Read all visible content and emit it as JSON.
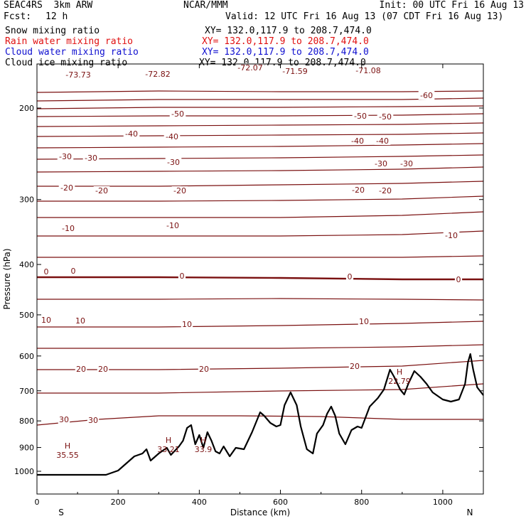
{
  "header": {
    "model": "SEAC4RS  3km ARW",
    "center": "NCAR/MMM",
    "init": "Init: 00 UTC Fri 16 Aug 13",
    "fcst_label": "Fcst:",
    "fcst_value": "12 h",
    "valid": "Valid: 12 UTC Fri 16 Aug 13 (07 CDT Fri 16 Aug 13)"
  },
  "fields": [
    {
      "name": "Snow mixing ratio",
      "xy": "XY= 132.0,117.9 to 208.7,474.0",
      "color": "#000000"
    },
    {
      "name": "Rain water mixing ratio",
      "xy": "XY= 132.0,117.9 to 208.7,474.0",
      "color": "#e01010"
    },
    {
      "name": "Cloud water mixing ratio",
      "xy": "XY= 132.0,117.9 to 208.7,474.0",
      "color": "#1010d0"
    },
    {
      "name": "Cloud ice mixing ratio",
      "xy": "XY= 132.0,117.9 to 208.7,474.0",
      "color": "#000000"
    }
  ],
  "chart_data": {
    "type": "line",
    "xlabel": "Distance (km)",
    "ylabel": "Pressure (hPa)",
    "xlim": [
      0,
      1100
    ],
    "ylim": [
      1050,
      100
    ],
    "x_ticks": [
      0,
      200,
      400,
      600,
      800,
      1000
    ],
    "y_ticks": [
      200,
      300,
      400,
      500,
      600,
      700,
      800,
      900,
      1000
    ],
    "y_scale": "log",
    "left_end_label": "S",
    "right_end_label": "N",
    "contour_color": "#7a1010",
    "terrain_color": "#000000",
    "temperature_contours": [
      {
        "level": -70,
        "p": [
          [
            0,
            130
          ],
          [
            300,
            128
          ],
          [
            600,
            129
          ],
          [
            900,
            129
          ],
          [
            1100,
            128
          ]
        ]
      },
      {
        "level": -65,
        "p": [
          [
            0,
            142
          ],
          [
            300,
            140
          ],
          [
            600,
            140
          ],
          [
            900,
            140
          ],
          [
            1100,
            138
          ]
        ]
      },
      {
        "level": -60,
        "p": [
          [
            0,
            153
          ],
          [
            300,
            151
          ],
          [
            600,
            151
          ],
          [
            900,
            150
          ],
          [
            1100,
            149
          ]
        ]
      },
      {
        "level": -55,
        "p": [
          [
            0,
            164
          ],
          [
            300,
            163
          ],
          [
            600,
            163
          ],
          [
            900,
            162
          ],
          [
            1100,
            160
          ]
        ]
      },
      {
        "level": -50,
        "p": [
          [
            0,
            178
          ],
          [
            300,
            177
          ],
          [
            600,
            176
          ],
          [
            900,
            175
          ],
          [
            1100,
            173
          ]
        ]
      },
      {
        "level": -45,
        "p": [
          [
            0,
            192
          ],
          [
            300,
            191
          ],
          [
            600,
            190
          ],
          [
            900,
            189
          ],
          [
            1100,
            187
          ]
        ]
      },
      {
        "level": -40,
        "p": [
          [
            0,
            208
          ],
          [
            300,
            207
          ],
          [
            600,
            206
          ],
          [
            900,
            204
          ],
          [
            1100,
            202
          ]
        ]
      },
      {
        "level": -35,
        "p": [
          [
            0,
            224
          ],
          [
            300,
            223
          ],
          [
            600,
            222
          ],
          [
            900,
            220
          ],
          [
            1100,
            218
          ]
        ]
      },
      {
        "level": -30,
        "p": [
          [
            0,
            242
          ],
          [
            300,
            241
          ],
          [
            600,
            240
          ],
          [
            900,
            238
          ],
          [
            1100,
            235
          ]
        ]
      },
      {
        "level": -25,
        "p": [
          [
            0,
            262
          ],
          [
            300,
            262
          ],
          [
            600,
            260
          ],
          [
            900,
            258
          ],
          [
            1100,
            255
          ]
        ]
      },
      {
        "level": -20,
        "p": [
          [
            0,
            283
          ],
          [
            300,
            283
          ],
          [
            600,
            282
          ],
          [
            900,
            280
          ],
          [
            1100,
            276
          ]
        ]
      },
      {
        "level": -15,
        "p": [
          [
            0,
            306
          ],
          [
            300,
            306
          ],
          [
            600,
            306
          ],
          [
            900,
            303
          ],
          [
            1100,
            298
          ]
        ]
      },
      {
        "level": -10,
        "p": [
          [
            0,
            332
          ],
          [
            300,
            332
          ],
          [
            600,
            332
          ],
          [
            900,
            330
          ],
          [
            1100,
            325
          ]
        ]
      },
      {
        "level": -5,
        "p": [
          [
            0,
            362
          ],
          [
            300,
            362
          ],
          [
            600,
            362
          ],
          [
            900,
            362
          ],
          [
            1100,
            360
          ]
        ]
      },
      {
        "level": 0,
        "p": [
          [
            0,
            390
          ],
          [
            300,
            390
          ],
          [
            600,
            391
          ],
          [
            900,
            393
          ],
          [
            1100,
            393
          ]
        ]
      },
      {
        "level": 5,
        "p": [
          [
            0,
            421
          ],
          [
            300,
            421
          ],
          [
            600,
            420
          ],
          [
            900,
            421
          ],
          [
            1100,
            422
          ]
        ]
      },
      {
        "level": 10,
        "p": [
          [
            0,
            460
          ],
          [
            300,
            460
          ],
          [
            600,
            458
          ],
          [
            900,
            455
          ],
          [
            1100,
            452
          ]
        ]
      },
      {
        "level": 15,
        "p": [
          [
            0,
            490
          ],
          [
            300,
            490
          ],
          [
            600,
            490
          ],
          [
            900,
            488
          ],
          [
            1100,
            485
          ]
        ]
      },
      {
        "level": 20,
        "p": [
          [
            0,
            520
          ],
          [
            300,
            520
          ],
          [
            600,
            518
          ],
          [
            900,
            515
          ],
          [
            1100,
            507
          ]
        ]
      },
      {
        "level": 25,
        "p": [
          [
            0,
            553
          ],
          [
            300,
            553
          ],
          [
            600,
            550
          ],
          [
            900,
            548
          ],
          [
            1100,
            540
          ]
        ]
      },
      {
        "level": 30,
        "p": [
          [
            0,
            598
          ],
          [
            150,
            590
          ],
          [
            300,
            585
          ],
          [
            500,
            585
          ],
          [
            700,
            586
          ],
          [
            900,
            590
          ],
          [
            1100,
            590
          ]
        ]
      }
    ],
    "terrain": [
      [
        0,
        668
      ],
      [
        170,
        668
      ],
      [
        200,
        662
      ],
      [
        220,
        652
      ],
      [
        240,
        642
      ],
      [
        260,
        638
      ],
      [
        270,
        632
      ],
      [
        280,
        648
      ],
      [
        300,
        638
      ],
      [
        320,
        630
      ],
      [
        330,
        640
      ],
      [
        350,
        628
      ],
      [
        360,
        620
      ],
      [
        370,
        602
      ],
      [
        380,
        598
      ],
      [
        390,
        625
      ],
      [
        400,
        612
      ],
      [
        410,
        630
      ],
      [
        420,
        608
      ],
      [
        430,
        620
      ],
      [
        440,
        635
      ],
      [
        450,
        638
      ],
      [
        460,
        628
      ],
      [
        475,
        642
      ],
      [
        490,
        630
      ],
      [
        510,
        632
      ],
      [
        530,
        608
      ],
      [
        550,
        580
      ],
      [
        560,
        585
      ],
      [
        575,
        595
      ],
      [
        590,
        600
      ],
      [
        600,
        598
      ],
      [
        610,
        570
      ],
      [
        625,
        552
      ],
      [
        640,
        570
      ],
      [
        650,
        600
      ],
      [
        665,
        632
      ],
      [
        680,
        638
      ],
      [
        690,
        610
      ],
      [
        705,
        598
      ],
      [
        715,
        582
      ],
      [
        725,
        572
      ],
      [
        735,
        585
      ],
      [
        745,
        610
      ],
      [
        760,
        625
      ],
      [
        775,
        605
      ],
      [
        790,
        600
      ],
      [
        800,
        602
      ],
      [
        820,
        572
      ],
      [
        840,
        560
      ],
      [
        855,
        548
      ],
      [
        870,
        520
      ],
      [
        880,
        530
      ],
      [
        895,
        548
      ],
      [
        905,
        555
      ],
      [
        915,
        540
      ],
      [
        930,
        522
      ],
      [
        945,
        530
      ],
      [
        960,
        540
      ],
      [
        975,
        552
      ],
      [
        1000,
        562
      ],
      [
        1020,
        565
      ],
      [
        1040,
        562
      ],
      [
        1055,
        540
      ],
      [
        1062,
        510
      ],
      [
        1068,
        498
      ],
      [
        1075,
        520
      ],
      [
        1085,
        545
      ],
      [
        1100,
        556
      ]
    ],
    "contour_labels": [
      {
        "text": "-73.73",
        "x": 110,
        "y": 105
      },
      {
        "text": "-72.82",
        "x": 222,
        "y": 104
      },
      {
        "text": "-72.07",
        "x": 352,
        "y": 95
      },
      {
        "text": "-71.59",
        "x": 415,
        "y": 100
      },
      {
        "text": "-71.08",
        "x": 518,
        "y": 99
      },
      {
        "text": "-60",
        "x": 600,
        "y": 134
      },
      {
        "text": "-50",
        "x": 250,
        "y": 160
      },
      {
        "text": "-50",
        "x": 507,
        "y": 163
      },
      {
        "text": "-50",
        "x": 542,
        "y": 164
      },
      {
        "text": "-40",
        "x": 185,
        "y": 188
      },
      {
        "text": "-40",
        "x": 242,
        "y": 192
      },
      {
        "text": "-40",
        "x": 503,
        "y": 198
      },
      {
        "text": "-40",
        "x": 538,
        "y": 198
      },
      {
        "text": "-30",
        "x": 92,
        "y": 220
      },
      {
        "text": "-30",
        "x": 128,
        "y": 222
      },
      {
        "text": "-30",
        "x": 244,
        "y": 228
      },
      {
        "text": "-30",
        "x": 536,
        "y": 230
      },
      {
        "text": "-30",
        "x": 572,
        "y": 230
      },
      {
        "text": "-20",
        "x": 94,
        "y": 264
      },
      {
        "text": "-20",
        "x": 143,
        "y": 268
      },
      {
        "text": "-20",
        "x": 253,
        "y": 268
      },
      {
        "text": "-20",
        "x": 504,
        "y": 267
      },
      {
        "text": "-20",
        "x": 542,
        "y": 268
      },
      {
        "text": "-10",
        "x": 96,
        "y": 321
      },
      {
        "text": "-10",
        "x": 243,
        "y": 317
      },
      {
        "text": "-10",
        "x": 635,
        "y": 331
      },
      {
        "text": "0",
        "x": 65,
        "y": 382
      },
      {
        "text": "0",
        "x": 103,
        "y": 381
      },
      {
        "text": "0",
        "x": 256,
        "y": 388
      },
      {
        "text": "0",
        "x": 492,
        "y": 389
      },
      {
        "text": "0",
        "x": 645,
        "y": 393
      },
      {
        "text": "10",
        "x": 65,
        "y": 450
      },
      {
        "text": "10",
        "x": 113,
        "y": 451
      },
      {
        "text": "10",
        "x": 263,
        "y": 456
      },
      {
        "text": "10",
        "x": 512,
        "y": 452
      },
      {
        "text": "20",
        "x": 114,
        "y": 519
      },
      {
        "text": "20",
        "x": 145,
        "y": 519
      },
      {
        "text": "20",
        "x": 287,
        "y": 519
      },
      {
        "text": "20",
        "x": 499,
        "y": 515
      },
      {
        "text": "30",
        "x": 90,
        "y": 590
      },
      {
        "text": "30",
        "x": 131,
        "y": 591
      }
    ],
    "extrema": [
      {
        "mark": "H",
        "value": "35.55",
        "x": 95,
        "y": 639
      },
      {
        "mark": "H",
        "value": "33.21",
        "x": 237,
        "y": 631
      },
      {
        "mark": "H",
        "value": "33.9",
        "x": 286,
        "y": 631
      },
      {
        "mark": "H",
        "value": "22.79",
        "x": 562,
        "y": 535
      }
    ]
  }
}
